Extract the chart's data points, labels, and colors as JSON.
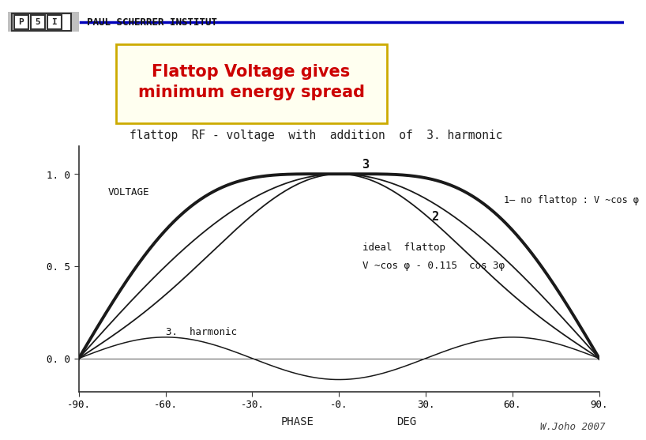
{
  "title_box": "Flattop Voltage gives\nminimum energy spread",
  "chart_title": "flattop  RF - voltage  with  addition  of  3. harmonic",
  "xlabel": "PHASE",
  "xlabel2": "DEG",
  "ylabel": "VOLTAGE",
  "yticks": [
    0.0,
    0.5,
    1.0
  ],
  "ytick_labels": [
    "0. 0",
    "0. 5",
    "1. 0"
  ],
  "xticks": [
    -90,
    -60,
    -30,
    0,
    30,
    60,
    90
  ],
  "xtick_labels": [
    "-90.",
    "-60.",
    "-30.",
    "-0.",
    "30.",
    "60.",
    "90."
  ],
  "xlim": [
    -90,
    90
  ],
  "ylim": [
    -0.18,
    1.15
  ],
  "label1": "1– no flattop : V ~cos φ",
  "label2": "2",
  "label3": "3",
  "label_harmonic": "3.  harmonic",
  "label_flattop": "ideal  flattop",
  "label_formula": "V ~cos φ - 0.115  cos 3φ",
  "bg_color": "#ffffff",
  "line_color": "#1a1a1a",
  "title_text_color": "#cc0000",
  "title_box_bg": "#fffff0",
  "title_box_border": "#ccaa00",
  "watermark": "W.Joho 2007",
  "psi_header_bg": "#d0d0d0",
  "harmonic_amplitude": 0.115
}
